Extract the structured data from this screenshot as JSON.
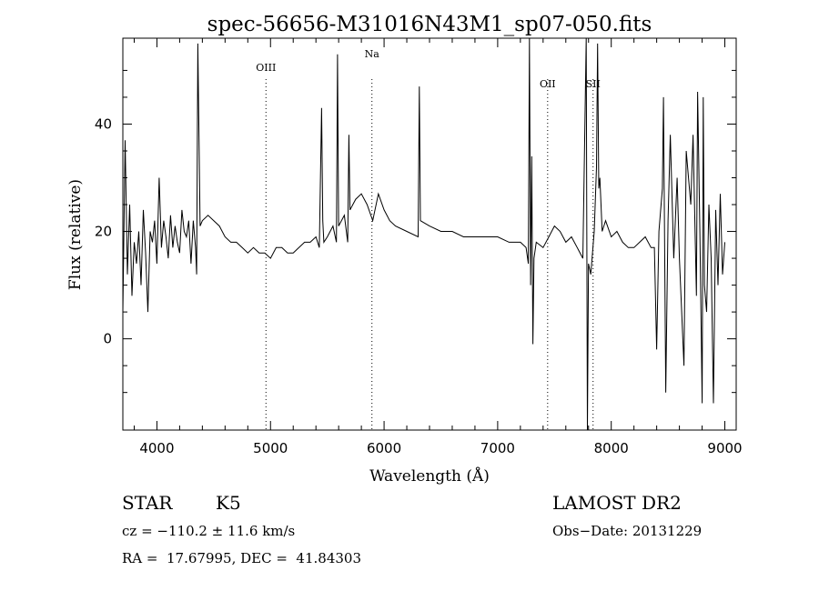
{
  "chart_data": {
    "type": "line",
    "title": "spec-56656-M31016N43M1_sp07-050.fits",
    "xlabel": "Wavelength (Å)",
    "ylabel": "Flux (relative)",
    "xlim": [
      3700,
      9100
    ],
    "ylim": [
      -17,
      56
    ],
    "xticks": [
      4000,
      5000,
      6000,
      7000,
      8000,
      9000
    ],
    "xtick_labels": [
      "4000",
      "5000",
      "6000",
      "7000",
      "8000",
      "9000"
    ],
    "yticks": [
      0,
      20,
      40
    ],
    "ytick_labels": [
      "0",
      "20",
      "40"
    ],
    "grid": false,
    "lines": [
      {
        "label": "OIII",
        "x": 4960
      },
      {
        "label": "Na",
        "x": 5893
      },
      {
        "label": "OII",
        "x": 7440
      },
      {
        "label": "SII",
        "x": 7840
      }
    ],
    "series": [
      {
        "x": [
          3700,
          3720,
          3740,
          3760,
          3780,
          3800,
          3820,
          3840,
          3860,
          3880,
          3900,
          3920,
          3940,
          3960,
          3980,
          4000,
          4020,
          4040,
          4060,
          4080,
          4100,
          4120,
          4140,
          4160,
          4180,
          4200,
          4220,
          4240,
          4260,
          4280,
          4300,
          4320,
          4340,
          4350,
          4360,
          4380,
          4400,
          4450,
          4500,
          4550,
          4600,
          4650,
          4700,
          4750,
          4800,
          4850,
          4900,
          4950,
          5000,
          5050,
          5100,
          5150,
          5200,
          5250,
          5300,
          5350,
          5400,
          5430,
          5450,
          5460,
          5470,
          5500,
          5550,
          5580,
          5590,
          5600,
          5650,
          5680,
          5690,
          5700,
          5750,
          5800,
          5850,
          5900,
          5950,
          6000,
          6050,
          6100,
          6200,
          6300,
          6310,
          6320,
          6400,
          6500,
          6600,
          6700,
          6800,
          6900,
          7000,
          7100,
          7150,
          7200,
          7250,
          7270,
          7280,
          7290,
          7300,
          7310,
          7320,
          7340,
          7400,
          7450,
          7500,
          7550,
          7600,
          7650,
          7700,
          7750,
          7780,
          7790,
          7800,
          7820,
          7850,
          7870,
          7880,
          7890,
          7900,
          7920,
          7950,
          8000,
          8050,
          8100,
          8150,
          8200,
          8250,
          8300,
          8350,
          8380,
          8400,
          8420,
          8450,
          8460,
          8480,
          8500,
          8520,
          8550,
          8580,
          8600,
          8640,
          8660,
          8700,
          8720,
          8750,
          8760,
          8780,
          8800,
          8810,
          8820,
          8840,
          8860,
          8880,
          8900,
          8920,
          8940,
          8960,
          8980,
          9000
        ],
        "y": [
          5,
          37,
          12,
          25,
          8,
          18,
          14,
          20,
          10,
          24,
          16,
          5,
          20,
          18,
          22,
          14,
          30,
          17,
          22,
          19,
          15,
          23,
          17,
          21,
          18,
          16,
          24,
          20,
          19,
          22,
          14,
          22,
          17,
          12,
          55,
          21,
          22,
          23,
          22,
          21,
          19,
          18,
          18,
          17,
          16,
          17,
          16,
          16,
          15,
          17,
          17,
          16,
          16,
          17,
          18,
          18,
          19,
          17,
          43,
          22,
          18,
          19,
          21,
          18,
          53,
          21,
          23,
          18,
          38,
          24,
          26,
          27,
          25,
          22,
          27,
          24,
          22,
          21,
          20,
          19,
          47,
          22,
          21,
          20,
          20,
          19,
          19,
          19,
          19,
          18,
          18,
          18,
          17,
          14,
          56,
          10,
          34,
          -1,
          15,
          18,
          17,
          19,
          21,
          20,
          18,
          19,
          17,
          15,
          56,
          -17,
          14,
          12,
          20,
          32,
          55,
          28,
          30,
          20,
          22,
          19,
          20,
          18,
          17,
          17,
          18,
          19,
          17,
          17,
          -2,
          20,
          28,
          45,
          -10,
          22,
          38,
          15,
          30,
          15,
          -5,
          35,
          25,
          38,
          8,
          46,
          20,
          -12,
          45,
          10,
          5,
          25,
          15,
          -12,
          24,
          10,
          27,
          12,
          18
        ]
      }
    ],
    "annotations": {
      "object_class": "STAR",
      "subclass": "K5",
      "survey": "LAMOST DR2",
      "cz": "cz = −110.2 ± 11.6 km/s",
      "obs_date": "Obs−Date: 20131229",
      "coords": "RA =  17.67995, DEC =  41.84303"
    }
  }
}
